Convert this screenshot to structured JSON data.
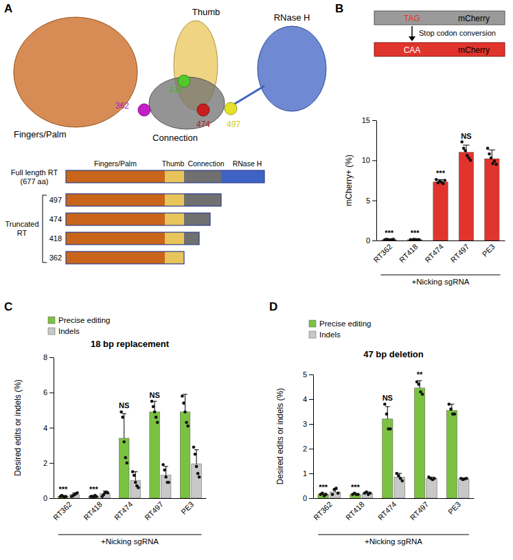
{
  "panels": [
    "A",
    "B",
    "C",
    "D"
  ],
  "diagram": {
    "domains": [
      "Fingers/Palm",
      "Thumb",
      "Connection",
      "RNase H"
    ],
    "residues": [
      362,
      418,
      474,
      497
    ],
    "full_length": [
      "Full length RT",
      "(677 aa)"
    ],
    "truncated_label": [
      "Truncated",
      "RT"
    ],
    "truncations": [
      497,
      474,
      418,
      362
    ],
    "reporter": {
      "before": "TAG",
      "after": "CAA",
      "gene": "mCherry",
      "arrow_label": "Stop codon conversion"
    }
  },
  "chart_data": [
    {
      "type": "bar",
      "ylabel": "mCherry+ (%)",
      "xlabel": "+Nicking sgRNA",
      "categories": [
        "RT362",
        "RT418",
        "RT474",
        "RT497",
        "PE3"
      ],
      "values": [
        0.1,
        0.1,
        7.3,
        11.0,
        10.2
      ],
      "errors": [
        0.05,
        0.05,
        0.3,
        0.9,
        1.1
      ],
      "points": [
        [
          0.1,
          0.15,
          0.1,
          0.05,
          0.1,
          0.15
        ],
        [
          0.1,
          0.05,
          0.15,
          0.1,
          0.1,
          0.1
        ],
        [
          7.6,
          7.2,
          7.4,
          7.3,
          7.1,
          7.5
        ],
        [
          12.3,
          11.5,
          11.2,
          10.6,
          10.3,
          10.0
        ],
        [
          11.5,
          10.8,
          10.3,
          9.6,
          9.9,
          9.5
        ]
      ],
      "significance": [
        "***",
        "***",
        "***",
        "NS",
        null
      ],
      "color": "#e0342c",
      "ylim": [
        0,
        15
      ],
      "yticks": [
        0,
        5,
        10,
        15
      ]
    },
    {
      "type": "bar",
      "title": "18 bp replacement",
      "ylabel": "Desired edits or indels (%)",
      "xlabel": "+Nicking sgRNA",
      "categories": [
        "RT362",
        "RT418",
        "RT474",
        "RT497",
        "PE3"
      ],
      "series": [
        {
          "name": "Precise editing",
          "color": "#7cc242",
          "values": [
            0.1,
            0.1,
            3.4,
            4.9,
            4.9
          ],
          "errors": [
            0.05,
            0.05,
            1.4,
            0.6,
            1.0
          ],
          "points": [
            [
              0.1,
              0.15,
              0.1,
              0.05,
              0.1
            ],
            [
              0.1,
              0.1,
              0.05,
              0.15,
              0.1
            ],
            [
              4.9,
              4.6,
              3.2,
              2.3,
              2.0
            ],
            [
              5.5,
              5.2,
              4.9,
              4.6,
              4.3
            ],
            [
              5.8,
              5.4,
              4.9,
              4.3,
              4.1
            ]
          ],
          "significance": [
            "***",
            "***",
            "NS",
            "NS",
            null
          ]
        },
        {
          "name": "Indels",
          "color": "#c8c8c8",
          "values": [
            0.2,
            0.25,
            1.0,
            1.3,
            1.95
          ],
          "errors": [
            0.1,
            0.15,
            0.5,
            0.5,
            0.8
          ],
          "points": [
            [
              0.1,
              0.15,
              0.2,
              0.25,
              0.3
            ],
            [
              0.1,
              0.2,
              0.3,
              0.35,
              0.3
            ],
            [
              1.5,
              1.3,
              0.9,
              0.7,
              0.6
            ],
            [
              1.9,
              1.6,
              1.2,
              0.9,
              0.9
            ],
            [
              2.9,
              2.5,
              1.8,
              1.4,
              1.2
            ]
          ]
        }
      ],
      "legend": "top-left",
      "ylim": [
        0,
        8
      ],
      "yticks": [
        0,
        2,
        4,
        6,
        8
      ]
    },
    {
      "type": "bar",
      "title": "47 bp deletion",
      "ylabel": "Desired edits or indels (%)",
      "xlabel": "+Nicking sgRNA",
      "categories": [
        "RT362",
        "RT418",
        "RT474",
        "RT497",
        "PE3"
      ],
      "series": [
        {
          "name": "Precise editing",
          "color": "#7cc242",
          "values": [
            0.15,
            0.15,
            3.2,
            4.45,
            3.55
          ],
          "errors": [
            0.05,
            0.03,
            0.5,
            0.3,
            0.25
          ],
          "points": [
            [
              0.15,
              0.2,
              0.1,
              0.15
            ],
            [
              0.15,
              0.2,
              0.15,
              0.15
            ],
            [
              3.8,
              3.4,
              2.8,
              2.8
            ],
            [
              4.7,
              4.6,
              4.3,
              4.2
            ],
            [
              3.8,
              3.6,
              3.4,
              3.4
            ]
          ],
          "significance": [
            "***",
            "***",
            "NS",
            "**",
            null
          ]
        },
        {
          "name": "Indels",
          "color": "#c8c8c8",
          "values": [
            0.25,
            0.2,
            0.85,
            0.8,
            0.78
          ],
          "errors": [
            0.1,
            0.05,
            0.15,
            0.05,
            0.03
          ],
          "points": [
            [
              0.15,
              0.35,
              0.4,
              0.2
            ],
            [
              0.2,
              0.25,
              0.15,
              0.2
            ],
            [
              1.0,
              0.9,
              0.8,
              0.7
            ],
            [
              0.85,
              0.8,
              0.75,
              0.8
            ],
            [
              0.8,
              0.75,
              0.78,
              0.8
            ]
          ]
        }
      ],
      "legend": "top-left",
      "ylim": [
        0,
        5
      ],
      "yticks": [
        0,
        1,
        2,
        3,
        4,
        5
      ]
    }
  ]
}
